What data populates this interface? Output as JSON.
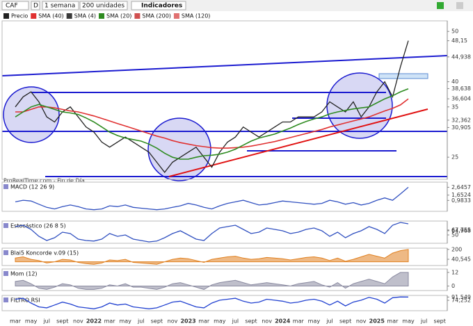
{
  "toolbar": {
    "symbol": "CAF",
    "mode": "D",
    "period": "1 semana",
    "units": "200 unidades",
    "indicators": "Indicadores"
  },
  "legend": [
    {
      "name": "Precio",
      "color": "#222222"
    },
    {
      "name": "SMA (40)",
      "color": "#e03030"
    },
    {
      "name": "SMA (4)",
      "color": "#3a3a3a"
    },
    {
      "name": "SMA (20)",
      "color": "#2e8b20"
    },
    {
      "name": "SMA (200)",
      "color": "#d05050"
    },
    {
      "name": "SMA (120)",
      "color": "#e07070"
    }
  ],
  "footer": "ProRealTime.com - Fin de Día",
  "chart_data": [
    {
      "type": "line",
      "title": null,
      "categories": [
        "mar",
        null,
        "may",
        null,
        "jul",
        null,
        "sept",
        null,
        "nov",
        null,
        "2022",
        null,
        "mar",
        null,
        "may",
        null,
        "jul",
        null,
        "sept",
        null,
        "nov",
        null,
        "2023",
        null,
        "mar",
        null,
        "may",
        null,
        "jul",
        null,
        "sept",
        null,
        "nov",
        null,
        "2024",
        null,
        "mar",
        null,
        "may",
        null,
        "jul",
        null,
        "sept",
        null,
        "nov",
        null,
        "2025",
        null,
        "mar",
        null,
        "may",
        null,
        "jul",
        null,
        "sept"
      ],
      "series": [
        {
          "name": "Precio",
          "color": "#222222",
          "values": [
            35,
            37,
            38,
            36,
            33,
            32,
            34,
            35,
            33,
            31,
            30,
            28,
            27,
            28,
            29,
            28,
            27,
            26,
            24,
            22,
            24,
            25,
            26,
            27,
            25,
            23,
            26,
            28,
            29,
            31,
            30,
            29,
            30,
            31,
            32,
            32,
            33,
            33,
            33,
            34,
            36,
            35,
            34,
            36,
            33,
            35,
            38,
            40,
            37,
            43,
            48.15,
            null,
            null,
            null,
            null
          ]
        },
        {
          "name": "SMA (40)",
          "color": "#e03030",
          "values": [
            34,
            34,
            34.5,
            35,
            35,
            34.8,
            34.5,
            34.2,
            34,
            33.6,
            33.2,
            32.7,
            32.2,
            31.7,
            31.2,
            30.7,
            30.2,
            29.7,
            29.2,
            28.8,
            28.3,
            27.9,
            27.6,
            27.3,
            27.1,
            26.9,
            26.8,
            26.8,
            26.9,
            27,
            27.2,
            27.5,
            27.8,
            28.1,
            28.5,
            28.9,
            29.3,
            29.7,
            30.1,
            30.5,
            31,
            31.4,
            31.8,
            32.2,
            32.6,
            33,
            33.6,
            34.2,
            34.7,
            35.4,
            36.6,
            null,
            null,
            null,
            null
          ]
        },
        {
          "name": "SMA (20)",
          "color": "#2e8b20",
          "values": [
            33,
            34,
            35,
            35.5,
            35,
            34.5,
            34,
            33.8,
            33.5,
            32.8,
            32,
            31,
            30,
            29.3,
            28.8,
            28.5,
            28.2,
            27.6,
            26.8,
            25.8,
            25,
            24.6,
            24.6,
            25,
            25.3,
            25.4,
            25.6,
            26,
            26.6,
            27.4,
            28.2,
            28.8,
            29.2,
            29.6,
            30.2,
            30.8,
            31.5,
            32.1,
            32.6,
            33,
            33.6,
            34,
            34.3,
            34.6,
            34.8,
            35,
            35.8,
            36.6,
            37.2,
            38,
            38.6,
            null,
            null,
            null,
            null
          ]
        }
      ],
      "ylim": [
        20.6,
        52.1
      ],
      "yticks": [
        50,
        {
          "value": 48.15,
          "label": "48,15"
        },
        {
          "value": 44.938,
          "label": "44,938"
        },
        40,
        {
          "value": 38.638,
          "label": "38,638"
        },
        {
          "value": 36.604,
          "label": "36,604"
        },
        35,
        {
          "value": 32.362,
          "label": "32,362"
        },
        {
          "value": 30.905,
          "label": "30,905"
        },
        25
      ]
    },
    {
      "type": "line",
      "title": "MACD (12 26 9)",
      "series": [
        {
          "name": "MACD",
          "color": "#3050c0",
          "values": [
            0.8,
            1.0,
            0.9,
            0.5,
            0.1,
            -0.1,
            0.2,
            0.4,
            0.2,
            -0.1,
            -0.2,
            -0.1,
            0.3,
            0.2,
            0.4,
            0.1,
            0,
            -0.1,
            -0.2,
            -0.1,
            0.1,
            0.3,
            0.6,
            0.4,
            0.1,
            -0.1,
            0.3,
            0.6,
            0.8,
            1.0,
            0.7,
            0.4,
            0.5,
            0.7,
            0.9,
            0.8,
            0.7,
            0.6,
            0.5,
            0.6,
            1.0,
            0.8,
            0.5,
            0.7,
            0.4,
            0.6,
            1.0,
            1.3,
            1.0,
            1.8,
            2.6457,
            null,
            null,
            null,
            null
          ]
        }
      ],
      "ylim": [
        -0.4,
        3.3
      ],
      "yticks": [
        {
          "value": 2.6457,
          "label": "2,6457"
        },
        {
          "value": 1.6524,
          "label": "1,6524"
        },
        {
          "value": 0.9833,
          "label": "0,9833"
        }
      ]
    },
    {
      "type": "line",
      "title": "Estocástico (26 8 5)",
      "series": [
        {
          "name": "Estocástico",
          "color": "#3050c0",
          "values": [
            80,
            85,
            70,
            45,
            30,
            40,
            60,
            55,
            35,
            30,
            28,
            35,
            55,
            45,
            50,
            35,
            30,
            25,
            28,
            40,
            55,
            65,
            50,
            35,
            30,
            55,
            75,
            80,
            85,
            70,
            55,
            60,
            75,
            70,
            65,
            55,
            60,
            70,
            75,
            65,
            45,
            60,
            40,
            55,
            65,
            80,
            70,
            55,
            85,
            95,
            90,
            null,
            null,
            null,
            null
          ]
        }
      ],
      "ylim": [
        20,
        100
      ],
      "yticks": [
        {
          "value": 67.755,
          "label": "67,755"
        },
        {
          "value": 64.968,
          "label": "64,968"
        },
        50
      ]
    },
    {
      "type": "area",
      "title": "Blai5 Koncorde v.09 (15)",
      "series": [
        {
          "name": "Koncorde",
          "color": "#e08020",
          "values": [
            60,
            80,
            40,
            20,
            -20,
            0,
            40,
            30,
            -10,
            -30,
            -40,
            -20,
            30,
            20,
            40,
            -10,
            -20,
            -30,
            -40,
            0,
            40,
            60,
            50,
            20,
            -10,
            40,
            60,
            80,
            90,
            60,
            40,
            50,
            70,
            60,
            50,
            30,
            50,
            70,
            80,
            60,
            20,
            60,
            10,
            40,
            80,
            120,
            90,
            60,
            140,
            180,
            200,
            null,
            null,
            null,
            null
          ]
        }
      ],
      "ylim": [
        -60,
        220
      ],
      "yticks": [
        200,
        {
          "value": 40.545,
          "label": "40,545"
        }
      ]
    },
    {
      "type": "area",
      "title": "Mom (12)",
      "series": [
        {
          "name": "Mom",
          "color": "#8a8aa0",
          "values": [
            4,
            5,
            2,
            -2,
            -3,
            -1,
            2,
            1,
            -2,
            -3,
            -3,
            -2,
            1,
            0,
            2,
            -1,
            -1,
            -2,
            -3,
            -1,
            2,
            3,
            1,
            -1,
            -3,
            1,
            3,
            4,
            5,
            3,
            1,
            2,
            3,
            2,
            1,
            0,
            2,
            3,
            4,
            1,
            -1,
            3,
            -2,
            2,
            4,
            6,
            4,
            2,
            8,
            12,
            12,
            null,
            null,
            null,
            null
          ]
        }
      ],
      "ylim": [
        -4,
        15
      ],
      "yticks": [
        12,
        0
      ]
    },
    {
      "type": "line",
      "title": "FILTRO RSI",
      "series": [
        {
          "name": "RSI",
          "color": "#2040d0",
          "values": [
            80,
            85,
            60,
            40,
            35,
            50,
            65,
            55,
            40,
            35,
            30,
            40,
            60,
            50,
            55,
            40,
            35,
            30,
            35,
            50,
            65,
            70,
            55,
            40,
            35,
            60,
            75,
            80,
            85,
            70,
            60,
            65,
            80,
            75,
            70,
            60,
            65,
            75,
            80,
            70,
            50,
            70,
            45,
            65,
            75,
            90,
            80,
            60,
            88,
            92,
            91.549,
            null,
            null,
            null,
            null
          ]
        }
      ],
      "ylim": [
        20,
        100
      ],
      "yticks": [
        {
          "value": 91.549,
          "label": "91,549"
        },
        {
          "value": 74.252,
          "label": "74,252"
        }
      ]
    }
  ]
}
